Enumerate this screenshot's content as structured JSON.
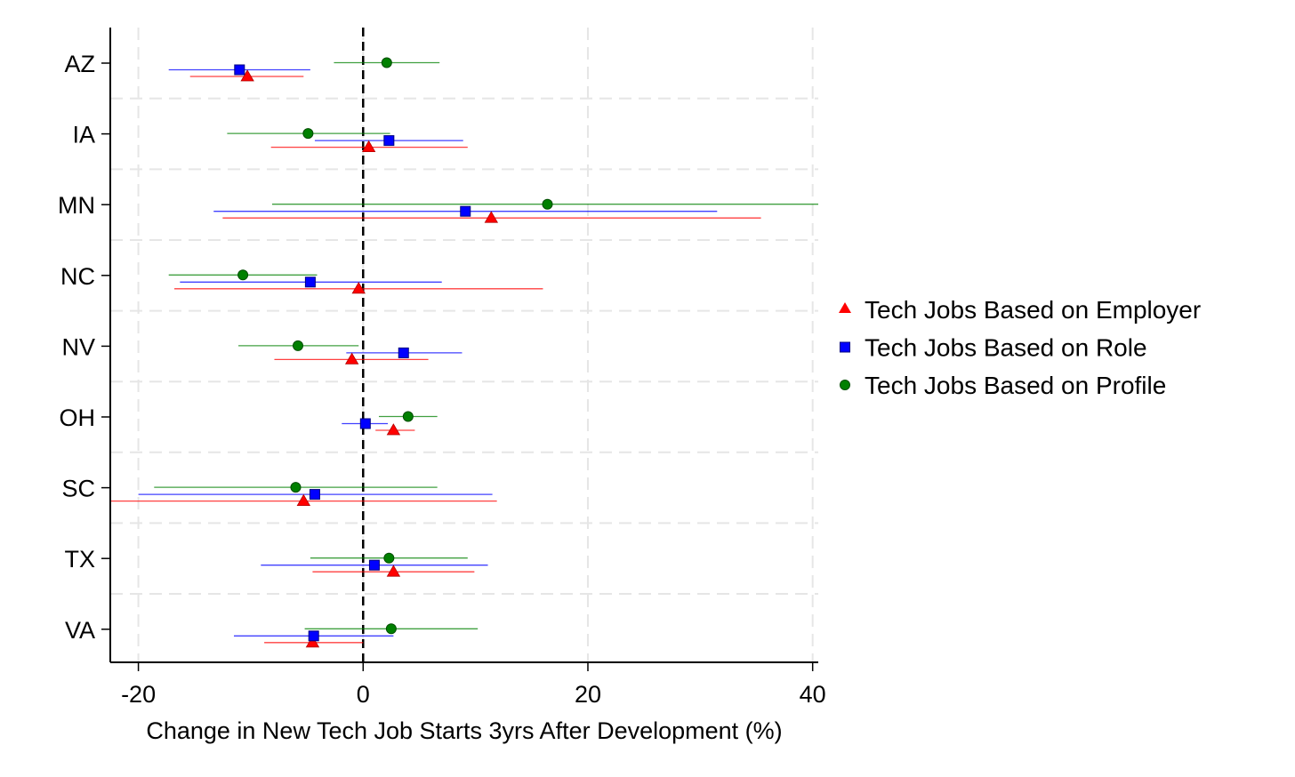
{
  "chart_data": {
    "type": "scatter",
    "subtype": "coefficient-plot-with-confidence-intervals",
    "title": "",
    "xlabel": "Change in New Tech Job Starts 3yrs After Development (%)",
    "ylabel": "",
    "xlim": [
      -22.5,
      40.5
    ],
    "xticks": [
      -20,
      0,
      20,
      40
    ],
    "xtick_labels": [
      "-20",
      "0",
      "20",
      "40"
    ],
    "reference_line_x": 0,
    "grid": true,
    "legend_position": "right",
    "categories": [
      "AZ",
      "IA",
      "MN",
      "NC",
      "NV",
      "OH",
      "SC",
      "TX",
      "VA"
    ],
    "series": [
      {
        "name": "Tech Jobs Based on Employer",
        "marker": "triangle",
        "color": "#ff0000",
        "estimates": [
          -10.3,
          0.5,
          11.4,
          -0.4,
          -1.0,
          2.7,
          -5.3,
          2.7,
          -4.5
        ],
        "ci_low": [
          -15.4,
          -8.2,
          -12.5,
          -16.8,
          -7.9,
          1.1,
          -22.5,
          -4.5,
          -8.8
        ],
        "ci_high": [
          -5.3,
          9.3,
          35.4,
          16.0,
          5.8,
          4.6,
          11.9,
          9.9,
          0.0
        ]
      },
      {
        "name": "Tech Jobs Based on Role",
        "marker": "square",
        "color": "#0000ff",
        "estimates": [
          -11.0,
          2.3,
          9.1,
          -4.7,
          3.6,
          0.2,
          -4.3,
          1.0,
          -4.4
        ],
        "ci_low": [
          -17.3,
          -4.3,
          -13.3,
          -16.3,
          -1.5,
          -1.9,
          -20.0,
          -9.1,
          -11.5
        ],
        "ci_high": [
          -4.7,
          8.9,
          31.5,
          7.0,
          8.8,
          2.2,
          11.5,
          11.1,
          2.7
        ]
      },
      {
        "name": "Tech Jobs Based on Profile",
        "marker": "circle",
        "color": "#008000",
        "estimates": [
          2.1,
          -4.9,
          16.4,
          -10.7,
          -5.8,
          4.0,
          -6.0,
          2.3,
          2.5
        ],
        "ci_low": [
          -2.6,
          -12.1,
          -8.1,
          -17.3,
          -11.1,
          1.4,
          -18.6,
          -4.7,
          -5.2
        ],
        "ci_high": [
          6.8,
          2.4,
          40.5,
          -4.1,
          -0.4,
          6.6,
          6.6,
          9.3,
          10.2
        ]
      }
    ]
  }
}
